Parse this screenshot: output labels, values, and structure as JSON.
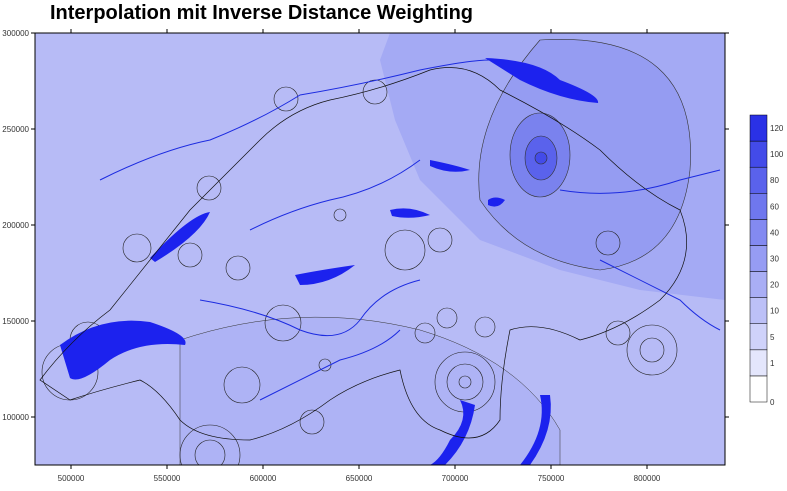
{
  "title": "Interpolation mit Inverse Distance Weighting",
  "map": {
    "xlim": [
      481250,
      840625
    ],
    "ylim": [
      75000,
      300000
    ],
    "xticks": [
      500000,
      550000,
      600000,
      650000,
      700000,
      750000,
      800000
    ],
    "yticks": [
      100000,
      150000,
      200000,
      250000,
      300000
    ]
  },
  "legend": {
    "breaks": [
      0,
      1,
      5,
      10,
      20,
      30,
      40,
      60,
      80,
      100,
      120
    ],
    "colors": [
      "#ffffff",
      "#e4e6fc",
      "#cfd2fa",
      "#bcc0f7",
      "#a9aef5",
      "#969cf3",
      "#838af1",
      "#6f77ee",
      "#5a62ec",
      "#434be9",
      "#2a31e6"
    ]
  }
}
